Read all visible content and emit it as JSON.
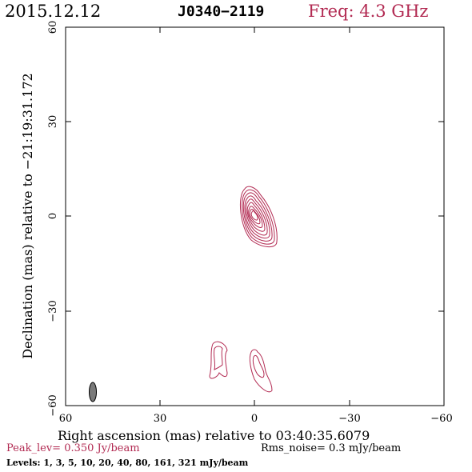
{
  "header": {
    "date": "2015.12.12",
    "source": "J0340−2119",
    "freq": "Freq: 4.3 GHz"
  },
  "axes": {
    "xlabel": "Right ascension (mas) relative to 03:40:35.6079",
    "ylabel": "Declination (mas) relative to −21:19:31.172",
    "xticks": [
      "60",
      "30",
      "0",
      "−30",
      "−60"
    ],
    "yticks": [
      "60",
      "30",
      "0",
      "−30",
      "−60"
    ]
  },
  "footer": {
    "peak": "Peak_lev=  0.350 Jy/beam",
    "rms": "Rms_noise=  0.3 mJy/beam",
    "levels": "Levels:   1,   3,   5,  10,  20,  40,  80, 161, 321 mJy/beam"
  },
  "colors": {
    "accent": "#b22a52",
    "contour": "#b22a52",
    "beam": "#7a7a7a"
  }
}
